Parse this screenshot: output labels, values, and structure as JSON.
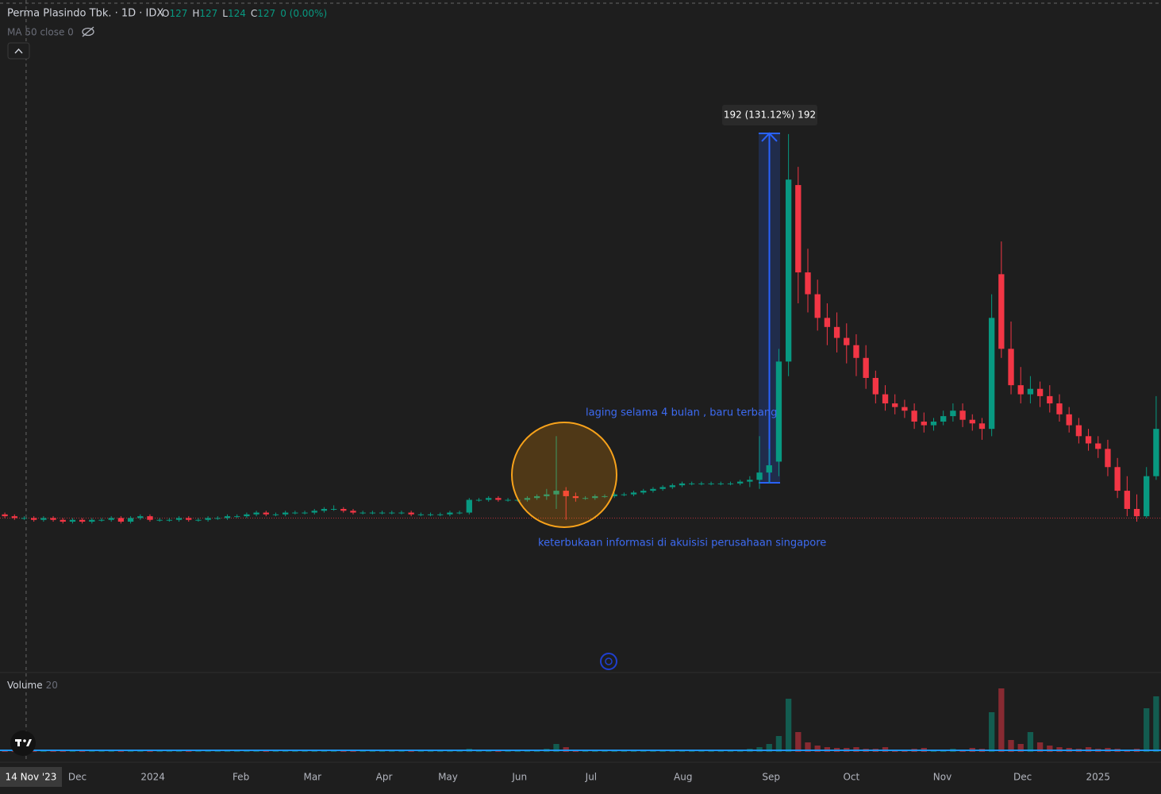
{
  "header": {
    "symbol": "Perma Plasindo Tbk. · 1D · IDX",
    "o_label": "O",
    "o": 127,
    "h_label": "H",
    "h": 127,
    "l_label": "L",
    "l": 124,
    "c_label": "C",
    "c": 127,
    "change": "0 (0.00%)",
    "indicator": "MA 50 close 0",
    "volume_label": "Volume",
    "volume_length": 20
  },
  "chart_data": {
    "type": "candlestick",
    "open": [
      129,
      128,
      127,
      127,
      126,
      127,
      126,
      125,
      126,
      125,
      126,
      126,
      127,
      125,
      127,
      128,
      126,
      126,
      126,
      127,
      126,
      126,
      127,
      127,
      128,
      128,
      129,
      130,
      129,
      129,
      130,
      130,
      130,
      131,
      132,
      132,
      131,
      130,
      130,
      130,
      130,
      130,
      130,
      129,
      129,
      129,
      129,
      130,
      130,
      137,
      137,
      138,
      137,
      137,
      137,
      138,
      139,
      140,
      142,
      139,
      138,
      138,
      139,
      139,
      140,
      140,
      141,
      142,
      143,
      144,
      145,
      146,
      146,
      146,
      146,
      146,
      146,
      147,
      148,
      152,
      158,
      213,
      310,
      262,
      250,
      237,
      232,
      226,
      222,
      215,
      204,
      195,
      190,
      188,
      186,
      180,
      178,
      180,
      183,
      186,
      181,
      179,
      176,
      261,
      220,
      200,
      195,
      198,
      194,
      190,
      184,
      178,
      172,
      168,
      165,
      155,
      142,
      132,
      128,
      150
    ],
    "high": [
      130,
      129,
      128,
      128,
      128,
      128,
      127,
      127,
      127,
      127,
      127,
      128,
      128,
      128,
      129,
      129,
      127,
      127,
      128,
      128,
      127,
      128,
      128,
      129,
      129,
      130,
      131,
      131,
      130,
      131,
      131,
      131,
      132,
      133,
      134,
      133,
      132,
      131,
      131,
      131,
      131,
      131,
      131,
      130,
      130,
      130,
      131,
      131,
      138,
      138,
      139,
      139,
      138,
      138,
      139,
      140,
      143,
      172,
      144,
      141,
      139,
      140,
      140,
      141,
      141,
      142,
      143,
      144,
      145,
      146,
      147,
      147,
      147,
      147,
      147,
      147,
      148,
      150,
      172,
      165,
      220,
      338,
      320,
      275,
      258,
      245,
      240,
      234,
      228,
      222,
      208,
      200,
      195,
      192,
      190,
      185,
      182,
      186,
      190,
      190,
      184,
      182,
      250,
      279,
      235,
      210,
      205,
      202,
      200,
      195,
      188,
      182,
      176,
      172,
      170,
      160,
      150,
      140,
      155,
      194
    ],
    "low": [
      127,
      126,
      126,
      125,
      125,
      125,
      124,
      124,
      124,
      124,
      125,
      125,
      124,
      124,
      126,
      125,
      125,
      125,
      125,
      125,
      125,
      125,
      126,
      126,
      127,
      127,
      128,
      128,
      128,
      128,
      129,
      129,
      129,
      130,
      131,
      130,
      129,
      129,
      129,
      129,
      129,
      129,
      128,
      128,
      128,
      128,
      128,
      129,
      129,
      136,
      136,
      136,
      136,
      136,
      136,
      137,
      137,
      132,
      126,
      136,
      137,
      137,
      138,
      138,
      139,
      139,
      140,
      141,
      142,
      143,
      144,
      145,
      145,
      145,
      145,
      145,
      145,
      144,
      143,
      146,
      150,
      205,
      245,
      240,
      230,
      222,
      218,
      212,
      205,
      198,
      190,
      186,
      184,
      182,
      176,
      174,
      175,
      178,
      180,
      177,
      175,
      170,
      172,
      215,
      195,
      190,
      190,
      188,
      185,
      180,
      174,
      168,
      164,
      160,
      150,
      138,
      128,
      125,
      127,
      148
    ],
    "close": [
      128,
      127,
      127,
      126,
      127,
      126,
      125,
      126,
      125,
      126,
      126,
      127,
      125,
      127,
      128,
      126,
      126,
      126,
      127,
      126,
      126,
      127,
      127,
      128,
      128,
      129,
      130,
      129,
      129,
      130,
      130,
      130,
      131,
      132,
      132,
      131,
      130,
      130,
      130,
      130,
      130,
      130,
      129,
      129,
      129,
      129,
      130,
      130,
      137,
      137,
      138,
      137,
      137,
      137,
      138,
      139,
      140,
      142,
      139,
      138,
      138,
      139,
      139,
      140,
      140,
      141,
      142,
      143,
      144,
      145,
      146,
      146,
      146,
      146,
      146,
      146,
      147,
      148,
      152,
      156,
      213,
      313,
      262,
      250,
      237,
      232,
      226,
      222,
      215,
      204,
      195,
      190,
      188,
      186,
      180,
      178,
      180,
      183,
      186,
      181,
      179,
      176,
      237,
      220,
      200,
      195,
      198,
      194,
      190,
      184,
      178,
      172,
      168,
      165,
      155,
      142,
      132,
      128,
      150,
      176
    ],
    "volume": [
      2,
      2,
      1,
      2,
      1,
      2,
      3,
      2,
      1,
      2,
      2,
      1,
      2,
      3,
      2,
      2,
      1,
      2,
      2,
      3,
      2,
      2,
      1,
      2,
      2,
      2,
      3,
      2,
      2,
      2,
      2,
      3,
      2,
      3,
      2,
      2,
      2,
      2,
      2,
      2,
      2,
      2,
      2,
      2,
      2,
      2,
      2,
      2,
      4,
      2,
      2,
      2,
      2,
      3,
      3,
      3,
      4,
      10,
      6,
      3,
      2,
      2,
      2,
      2,
      2,
      3,
      2,
      2,
      3,
      2,
      2,
      2,
      2,
      2,
      3,
      2,
      3,
      4,
      6,
      10,
      20,
      67,
      25,
      12,
      8,
      6,
      5,
      5,
      6,
      4,
      4,
      6,
      3,
      3,
      4,
      5,
      3,
      3,
      4,
      3,
      5,
      4,
      50,
      80,
      15,
      10,
      25,
      12,
      8,
      6,
      5,
      4,
      6,
      4,
      5,
      4,
      3,
      4,
      55,
      70
    ],
    "xlim": [
      0,
      120
    ],
    "ylim": [
      42.1,
      411.7
    ],
    "volume_ylim": [
      0,
      100
    ],
    "xticks": [
      {
        "value": 8.0,
        "label": "Dec"
      },
      {
        "value": 15.8,
        "label": "2024"
      },
      {
        "value": 24.9,
        "label": "Feb"
      },
      {
        "value": 32.3,
        "label": "Mar"
      },
      {
        "value": 39.7,
        "label": "Apr"
      },
      {
        "value": 46.3,
        "label": "May"
      },
      {
        "value": 53.7,
        "label": "Jun"
      },
      {
        "value": 61.1,
        "label": "Jul"
      },
      {
        "value": 70.6,
        "label": "Aug"
      },
      {
        "value": 79.7,
        "label": "Sep"
      },
      {
        "value": 88.0,
        "label": "Oct"
      },
      {
        "value": 97.4,
        "label": "Nov"
      },
      {
        "value": 105.7,
        "label": "Dec"
      },
      {
        "value": 113.5,
        "label": "2025"
      }
    ],
    "crosshair": {
      "value": 2.7,
      "label": "14 Nov '23"
    },
    "price_line": 127,
    "up_color": "#089981",
    "down_color": "#f23645",
    "measure": {
      "from": 146.4,
      "to": 338.4,
      "label": "192 (131.12%) 192"
    },
    "annotations": [
      "laging selama 4 bulan , baru terbang",
      "keterbukaan informasi di akuisisi perusahaan singapore"
    ]
  }
}
